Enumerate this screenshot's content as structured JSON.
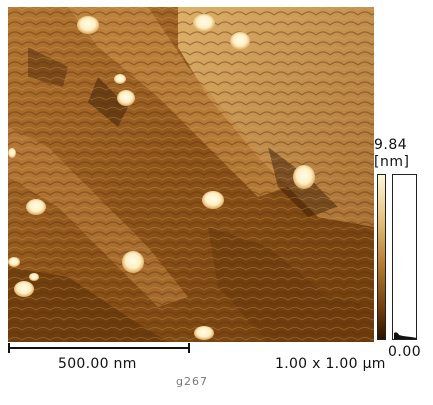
{
  "image": {
    "description_icon": "afm-topography-image",
    "colors": {
      "dark": "#3a1c04",
      "mid": "#9a5f1e",
      "light": "#d9a55a",
      "highlight": "#fff3cf"
    }
  },
  "colorbar": {
    "max_value": "9.84",
    "unit": "[nm]",
    "min_value": "0.00"
  },
  "scale_bar": {
    "label": "500.00 nm"
  },
  "scan_size": "1.00 x 1.00 µm",
  "file_name": "g267"
}
